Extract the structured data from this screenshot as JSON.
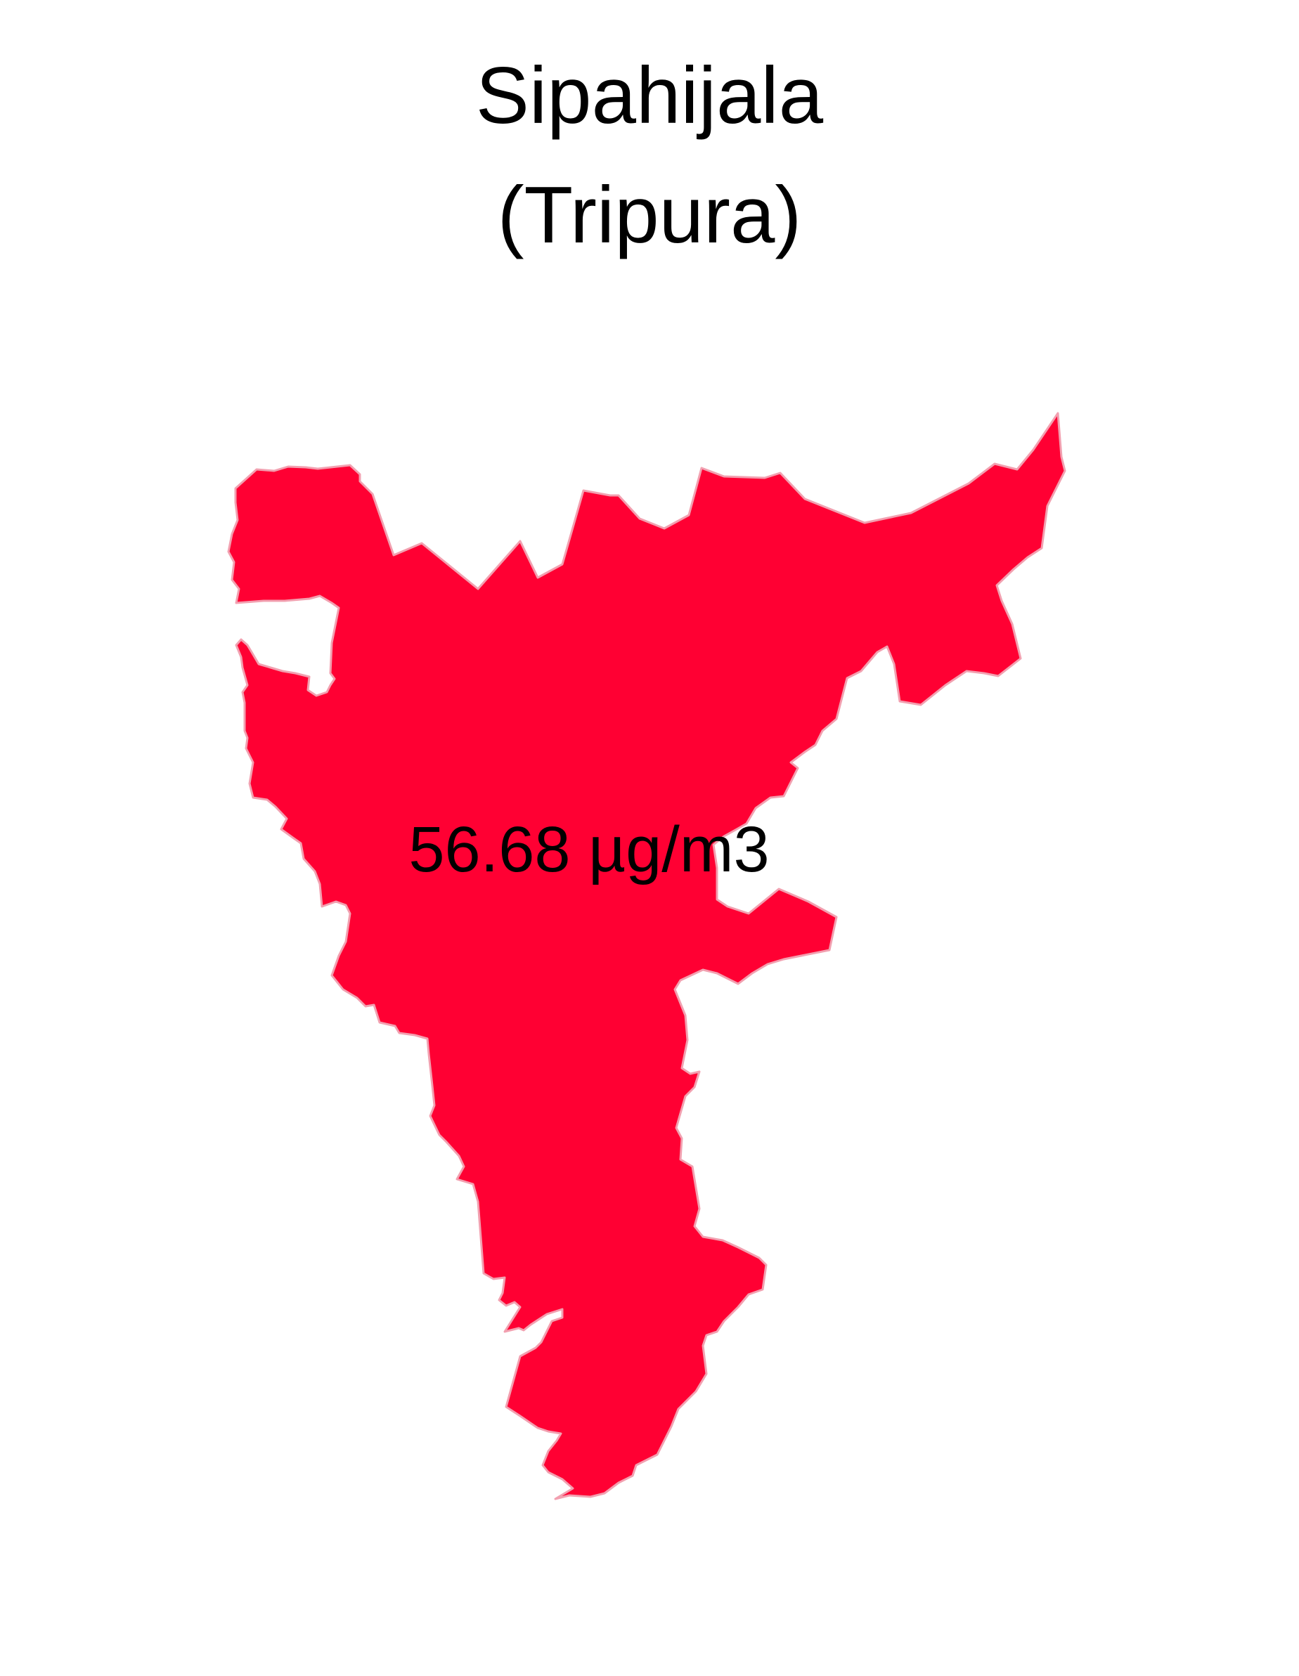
{
  "map": {
    "title_line_1": "Sipahijala",
    "title_line_2": "(Tripura)",
    "region": {
      "name": "Sipahijala",
      "value_label": "56.68 µg/m3",
      "fill_color": "#FF0033",
      "stroke_color": "#F2A0B0"
    },
    "background_color": "#FFFFFF"
  }
}
